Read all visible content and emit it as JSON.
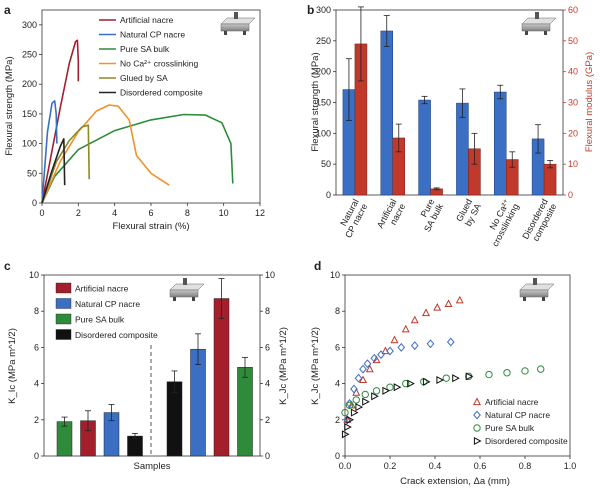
{
  "panels": [
    {
      "label": "a"
    },
    {
      "label": "b"
    },
    {
      "label": "c"
    },
    {
      "label": "d"
    }
  ],
  "chart_data": [
    {
      "panel": "a",
      "type": "line",
      "xlabel": "Flexural strain (%)",
      "ylabel": "Flexural strength (MPa)",
      "xlim": [
        0,
        12
      ],
      "ylim": [
        0,
        325
      ],
      "xticks": [
        0,
        2,
        4,
        6,
        8,
        10,
        12
      ],
      "yticks": [
        0,
        50,
        100,
        150,
        200,
        250,
        300
      ],
      "legend_position": "top-right",
      "series": [
        {
          "name": "Artificial nacre",
          "color": "#a31f2c",
          "points": [
            [
              0,
              0
            ],
            [
              0.5,
              80
            ],
            [
              1,
              160
            ],
            [
              1.5,
              235
            ],
            [
              1.85,
              272
            ],
            [
              1.95,
              274
            ],
            [
              2.0,
              240
            ],
            [
              2.0,
              205
            ]
          ]
        },
        {
          "name": "Natural CP nacre",
          "color": "#3b6fc4",
          "points": [
            [
              0,
              0
            ],
            [
              0.3,
              120
            ],
            [
              0.55,
              168
            ],
            [
              0.7,
              172
            ],
            [
              0.78,
              150
            ],
            [
              0.82,
              100
            ]
          ]
        },
        {
          "name": "Pure SA bulk",
          "color": "#2e8b3a",
          "points": [
            [
              0,
              0
            ],
            [
              0.7,
              45
            ],
            [
              2,
              90
            ],
            [
              4,
              122
            ],
            [
              6,
              140
            ],
            [
              7.8,
              149
            ],
            [
              9,
              148
            ],
            [
              9.9,
              135
            ],
            [
              10.4,
              100
            ],
            [
              10.5,
              33
            ]
          ]
        },
        {
          "name": "No Ca²⁺ crosslinking",
          "color": "#f0912a",
          "points": [
            [
              0,
              0
            ],
            [
              1,
              70
            ],
            [
              2,
              120
            ],
            [
              3,
              155
            ],
            [
              3.7,
              165
            ],
            [
              4.2,
              163
            ],
            [
              4.8,
              140
            ],
            [
              5.2,
              80
            ],
            [
              6,
              50
            ],
            [
              7,
              30
            ]
          ]
        },
        {
          "name": "Glued by SA",
          "color": "#8a8a2a",
          "points": [
            [
              0,
              0
            ],
            [
              0.8,
              70
            ],
            [
              1.5,
              105
            ],
            [
              2.2,
              128
            ],
            [
              2.55,
              131
            ],
            [
              2.6,
              40
            ]
          ]
        },
        {
          "name": "Disordered composite",
          "color": "#222222",
          "points": [
            [
              0,
              0
            ],
            [
              0.5,
              50
            ],
            [
              1.0,
              95
            ],
            [
              1.2,
              108
            ],
            [
              1.25,
              30
            ]
          ]
        }
      ]
    },
    {
      "panel": "b",
      "type": "bar",
      "ylabel": "Flexural strength (MPa)",
      "y2label": "Flexural modulus (GPa)",
      "ylim": [
        0,
        300
      ],
      "y2lim": [
        0,
        60
      ],
      "yticks": [
        0,
        50,
        100,
        150,
        200,
        250,
        300
      ],
      "y2ticks": [
        0,
        10,
        20,
        30,
        40,
        50,
        60
      ],
      "categories": [
        "Natural CP nacre",
        "Artificial nacre",
        "Pure SA bulk",
        "Glued by SA",
        "No Ca2+ crosslinking",
        "Disordered composite"
      ],
      "category_lines": [
        [
          "Natural",
          "CP nacre"
        ],
        [
          "Artificial",
          "nacre"
        ],
        [
          "Pure",
          "SA bulk"
        ],
        [
          "Glued",
          "by SA"
        ],
        [
          "No Ca²⁺",
          "crosslinking"
        ],
        [
          "Disordered",
          "composite"
        ]
      ],
      "series": [
        {
          "name": "Flexural strength",
          "axis": "left",
          "color": "#3b6fc4",
          "values": [
            171,
            266,
            154,
            149,
            167,
            91
          ],
          "errors": [
            50,
            25,
            6,
            23,
            11,
            23
          ]
        },
        {
          "name": "Flexural modulus",
          "axis": "right",
          "color": "#c0392b",
          "values": [
            49,
            18.5,
            2,
            15,
            11.5,
            10
          ],
          "errors": [
            12,
            4.5,
            0.3,
            5,
            2.5,
            1.2
          ]
        }
      ]
    },
    {
      "panel": "c",
      "type": "bar",
      "xlabel": "Samples",
      "ylabel": "K_Ic (MPa m^1/2)",
      "y2label": "K_Jc (MPa m^1/2)",
      "ylim": [
        0,
        10
      ],
      "yticks": [
        0,
        2,
        4,
        6,
        8,
        10
      ],
      "y2ticks": [
        0,
        2,
        4,
        6,
        8,
        10
      ],
      "legend_position": "top-left",
      "legend": [
        {
          "name": "Artificial nacre",
          "color": "#a31f2c"
        },
        {
          "name": "Natural CP nacre",
          "color": "#3b6fc4"
        },
        {
          "name": "Pure SA bulk",
          "color": "#2e8b3a"
        },
        {
          "name": "Disordered composite",
          "color": "#111111"
        }
      ],
      "groups": [
        {
          "name": "K_Ic",
          "bars": [
            {
              "series": "Pure SA bulk",
              "value": 1.9,
              "error": 0.25
            },
            {
              "series": "Artificial nacre",
              "value": 1.95,
              "error": 0.55
            },
            {
              "series": "Natural CP nacre",
              "value": 2.4,
              "error": 0.45
            },
            {
              "series": "Disordered composite",
              "value": 1.1,
              "error": 0.15
            }
          ]
        },
        {
          "name": "K_Jc",
          "bars": [
            {
              "series": "Disordered composite",
              "value": 4.1,
              "error": 0.6
            },
            {
              "series": "Natural CP nacre",
              "value": 5.9,
              "error": 0.85
            },
            {
              "series": "Artificial nacre",
              "value": 8.7,
              "error": 1.1
            },
            {
              "series": "Pure SA bulk",
              "value": 4.9,
              "error": 0.55
            }
          ]
        }
      ]
    },
    {
      "panel": "d",
      "type": "scatter",
      "xlabel": "Crack extension, Δa (mm)",
      "ylabel": "K_Jc (MPa m^1/2)",
      "xlim": [
        0,
        1.0
      ],
      "ylim": [
        0,
        10
      ],
      "xticks": [
        0,
        0.2,
        0.4,
        0.6,
        0.8,
        1.0
      ],
      "yticks": [
        0,
        2,
        4,
        6,
        8,
        10
      ],
      "legend_position": "bottom-right",
      "series": [
        {
          "name": "Artificial nacre",
          "color": "#c0392b",
          "marker": "triangle-up",
          "points": [
            [
              0.01,
              2.0
            ],
            [
              0.03,
              2.8
            ],
            [
              0.05,
              3.5
            ],
            [
              0.08,
              4.2
            ],
            [
              0.11,
              4.8
            ],
            [
              0.14,
              5.3
            ],
            [
              0.18,
              5.8
            ],
            [
              0.22,
              6.4
            ],
            [
              0.27,
              7.0
            ],
            [
              0.31,
              7.5
            ],
            [
              0.36,
              7.9
            ],
            [
              0.41,
              8.2
            ],
            [
              0.46,
              8.4
            ],
            [
              0.51,
              8.6
            ]
          ]
        },
        {
          "name": "Natural CP nacre",
          "color": "#3b6fc4",
          "marker": "diamond",
          "points": [
            [
              0.01,
              2.0
            ],
            [
              0.02,
              2.9
            ],
            [
              0.04,
              3.7
            ],
            [
              0.06,
              4.3
            ],
            [
              0.08,
              4.8
            ],
            [
              0.1,
              5.1
            ],
            [
              0.13,
              5.4
            ],
            [
              0.16,
              5.6
            ],
            [
              0.2,
              5.8
            ],
            [
              0.25,
              6.0
            ],
            [
              0.31,
              6.1
            ],
            [
              0.38,
              6.2
            ],
            [
              0.47,
              6.3
            ]
          ]
        },
        {
          "name": "Pure SA bulk",
          "color": "#2e8b3a",
          "marker": "circle",
          "points": [
            [
              0.0,
              2.4
            ],
            [
              0.02,
              2.8
            ],
            [
              0.05,
              3.1
            ],
            [
              0.09,
              3.4
            ],
            [
              0.14,
              3.6
            ],
            [
              0.2,
              3.8
            ],
            [
              0.27,
              4.0
            ],
            [
              0.35,
              4.1
            ],
            [
              0.45,
              4.3
            ],
            [
              0.55,
              4.4
            ],
            [
              0.64,
              4.5
            ],
            [
              0.72,
              4.6
            ],
            [
              0.8,
              4.7
            ],
            [
              0.87,
              4.8
            ]
          ]
        },
        {
          "name": "Disordered composite",
          "color": "#111111",
          "marker": "triangle-right",
          "points": [
            [
              0.0,
              1.2
            ],
            [
              0.01,
              1.6
            ],
            [
              0.02,
              2.0
            ],
            [
              0.04,
              2.4
            ],
            [
              0.06,
              2.7
            ],
            [
              0.09,
              3.0
            ],
            [
              0.13,
              3.3
            ],
            [
              0.18,
              3.6
            ],
            [
              0.23,
              3.8
            ],
            [
              0.29,
              4.0
            ],
            [
              0.36,
              4.1
            ],
            [
              0.42,
              4.2
            ],
            [
              0.49,
              4.3
            ],
            [
              0.55,
              4.4
            ]
          ]
        }
      ]
    }
  ]
}
